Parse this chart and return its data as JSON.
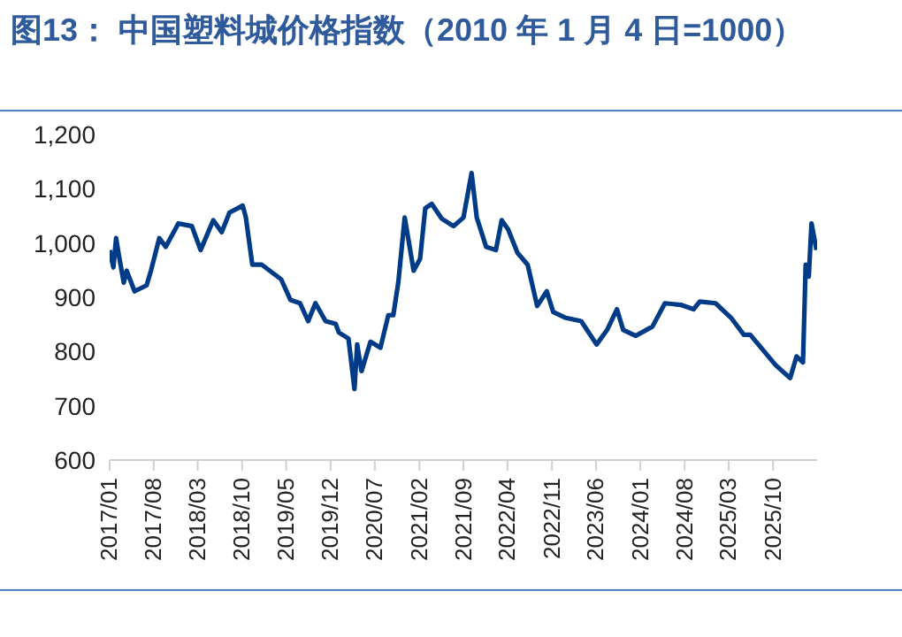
{
  "chart_data": {
    "type": "line",
    "title": "图13：  中国塑料城价格指数（2010 年 1 月 4 日=1000）",
    "x": [
      "2017-01-01",
      "2017-01-19",
      "2017-02-01",
      "2017-02-15",
      "2017-03-10",
      "2017-03-24",
      "2017-05-01",
      "2017-06-28",
      "2017-07-19",
      "2017-08-28",
      "2017-09-28",
      "2017-11-28",
      "2018-02-01",
      "2018-03-15",
      "2018-05-15",
      "2018-06-25",
      "2018-08-01",
      "2018-10-04",
      "2018-10-19",
      "2018-11-19",
      "2019-01-04",
      "2019-04-07",
      "2019-05-22",
      "2019-07-07",
      "2019-08-15",
      "2019-09-19",
      "2019-11-07",
      "2019-12-25",
      "2020-01-10",
      "2020-02-25",
      "2020-03-25",
      "2020-04-07",
      "2020-04-28",
      "2020-06-10",
      "2020-07-28",
      "2020-09-04",
      "2020-09-28",
      "2020-10-22",
      "2020-11-22",
      "2021-01-04",
      "2021-02-04",
      "2021-03-01",
      "2021-04-01",
      "2021-05-19",
      "2021-07-15",
      "2021-09-01",
      "2021-10-10",
      "2021-11-04",
      "2021-12-19",
      "2022-02-04",
      "2022-03-04",
      "2022-04-04",
      "2022-05-19",
      "2022-07-07",
      "2022-08-22",
      "2022-10-07",
      "2022-11-07",
      "2023-01-07",
      "2023-03-22",
      "2023-06-04",
      "2023-07-25",
      "2023-09-10",
      "2023-10-10",
      "2023-12-10",
      "2024-02-28",
      "2024-04-28",
      "2024-07-13",
      "2024-09-13",
      "2024-10-13",
      "2024-12-28",
      "2025-03-13",
      "2025-05-13",
      "2025-06-13",
      "2025-10-13",
      "2025-12-22",
      "2026-01-22",
      "2026-02-22",
      "2026-03-07",
      "2026-03-22",
      "2026-04-04",
      "2026-04-28"
    ],
    "series": [
      {
        "color": "#003b87",
        "values": [
          987,
          955,
          1009,
          976,
          927,
          949,
          911,
          922,
          949,
          1009,
          993,
          1036,
          1031,
          987,
          1042,
          1020,
          1056,
          1069,
          1047,
          960,
          960,
          933,
          895,
          889,
          856,
          889,
          856,
          851,
          835,
          824,
          731,
          813,
          764,
          818,
          807,
          867,
          867,
          927,
          1047,
          949,
          971,
          1064,
          1072,
          1045,
          1031,
          1047,
          1129,
          1047,
          993,
          987,
          1042,
          1025,
          982,
          960,
          884,
          911,
          873,
          862,
          856,
          813,
          840,
          878,
          840,
          829,
          846,
          889,
          886,
          878,
          892,
          889,
          862,
          831,
          831,
          775,
          751,
          791,
          780,
          960,
          938,
          1036,
          987
        ]
      }
    ],
    "xlim": [
      "2017-01",
      "2026-05"
    ],
    "xticks": [
      {
        "value": "2017-01",
        "label": "2017/01"
      },
      {
        "value": "2017-08",
        "label": "2017/08"
      },
      {
        "value": "2018-03",
        "label": "2018/03"
      },
      {
        "value": "2018-10",
        "label": "2018/10"
      },
      {
        "value": "2019-05",
        "label": "2019/05"
      },
      {
        "value": "2019-12",
        "label": "2019/12"
      },
      {
        "value": "2020-07",
        "label": "2020/07"
      },
      {
        "value": "2021-02",
        "label": "2021/02"
      },
      {
        "value": "2021-09",
        "label": "2021/09"
      },
      {
        "value": "2022-04",
        "label": "2022/04"
      },
      {
        "value": "2022-11",
        "label": "2022/11"
      },
      {
        "value": "2023-06",
        "label": "2023/06"
      },
      {
        "value": "2024-01",
        "label": "2024/01"
      },
      {
        "value": "2024-08",
        "label": "2024/08"
      },
      {
        "value": "2025-03",
        "label": "2025/03"
      },
      {
        "value": "2025-10",
        "label": "2025/10"
      }
    ],
    "ylim": [
      600,
      1200
    ],
    "yticks": [
      600,
      700,
      800,
      900,
      {
        "value": 1000,
        "label": "1,000"
      },
      {
        "value": 1100,
        "label": "1,100"
      },
      {
        "value": 1200,
        "label": "1,200"
      }
    ],
    "grid": false,
    "legend": false,
    "marker": "none",
    "line_style": "solid"
  }
}
